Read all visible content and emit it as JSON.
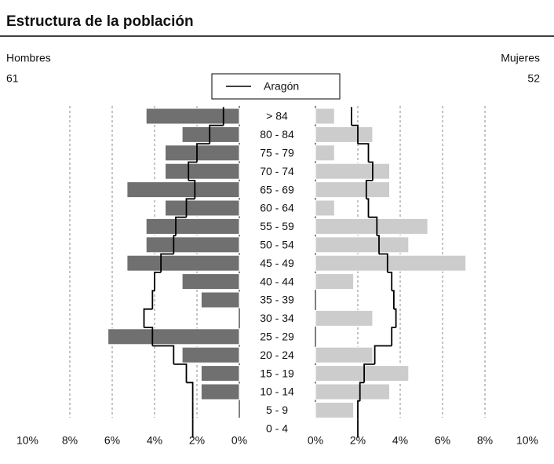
{
  "chart_data": {
    "type": "pyramid",
    "title": "Estructura de la población",
    "left_label": "Hombres",
    "left_total": 61,
    "right_label": "Mujeres",
    "right_total": 52,
    "categories": [
      "> 84",
      "80 - 84",
      "75 - 79",
      "70 - 74",
      "65 - 69",
      "60 - 64",
      "55 - 59",
      "50 - 54",
      "45 - 49",
      "40 - 44",
      "35 - 39",
      "30 - 34",
      "25 - 29",
      "20 - 24",
      "15 - 19",
      "10 - 14",
      "5 - 9",
      "0 - 4"
    ],
    "series": [
      {
        "name": "Hombres",
        "color": "#707070",
        "values": [
          4.4,
          2.7,
          3.5,
          3.5,
          5.3,
          3.5,
          4.4,
          4.4,
          5.3,
          2.7,
          1.8,
          0,
          6.2,
          2.7,
          1.8,
          1.8,
          0,
          0
        ]
      },
      {
        "name": "Mujeres",
        "color": "#cccccc",
        "values": [
          0.9,
          2.7,
          0.9,
          3.5,
          3.5,
          0.9,
          5.3,
          4.4,
          7.1,
          1.8,
          0,
          2.7,
          0,
          2.7,
          4.4,
          3.5,
          1.8,
          0
        ]
      }
    ],
    "reference": {
      "name": "Aragón",
      "color": "#000000",
      "left": [
        0.75,
        1.4,
        2.0,
        2.4,
        2.1,
        2.5,
        3.0,
        3.1,
        3.7,
        4.0,
        4.1,
        4.5,
        4.1,
        3.1,
        2.5,
        2.2,
        2.2,
        2.2
      ],
      "right": [
        1.7,
        2.0,
        2.5,
        2.7,
        2.4,
        2.5,
        2.9,
        3.0,
        3.4,
        3.6,
        3.7,
        3.8,
        3.6,
        2.8,
        2.3,
        2.1,
        2.0,
        2.0
      ]
    },
    "xlim": [
      0,
      10
    ],
    "xticks": [
      {
        "value": 0,
        "label": "0%"
      },
      {
        "value": 2,
        "label": "2%"
      },
      {
        "value": 4,
        "label": "4%"
      },
      {
        "value": 6,
        "label": "6%"
      },
      {
        "value": 8,
        "label": "8%"
      },
      {
        "value": 10,
        "label": "10%"
      }
    ],
    "grid": true
  }
}
